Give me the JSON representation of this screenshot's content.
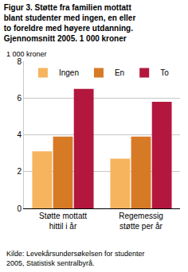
{
  "chart_data": {
    "type": "bar",
    "title": "Figur 3. Støtte fra familien mottatt blant studenter med ingen, en eller to foreldre med høyere utdanning. Gjennomsnitt 2005. 1 000 kroner",
    "ylabel": "1 000 kroner",
    "source": "Kilde: Levekårsundersøkelsen for studenter 2005, Statistisk sentralbyrå.",
    "categories": [
      "Støtte mottatt hittil i år",
      "Regemessig støtte per år"
    ],
    "series": [
      {
        "name": "Ingen",
        "color": "#f6b45e",
        "values": [
          3.1,
          2.7
        ]
      },
      {
        "name": "En",
        "color": "#d77a26",
        "values": [
          3.9,
          3.9
        ]
      },
      {
        "name": "To",
        "color": "#b3173d",
        "values": [
          6.5,
          5.8
        ]
      }
    ],
    "ylim": [
      0,
      8
    ],
    "yticks": [
      0,
      2,
      4,
      6,
      8
    ],
    "grid": true,
    "legend": "top"
  }
}
